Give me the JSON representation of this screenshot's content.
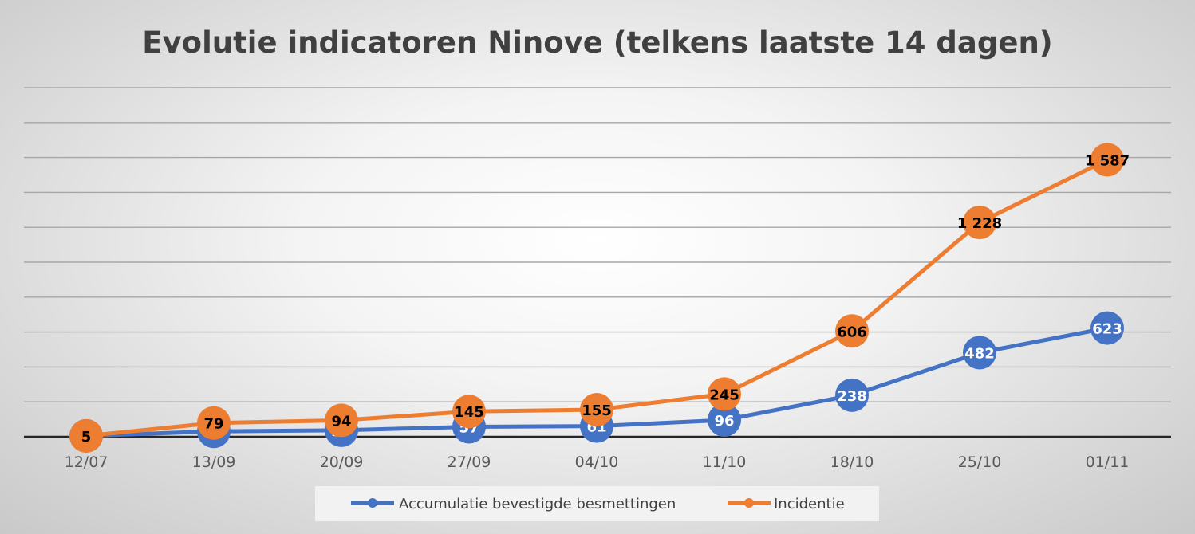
{
  "chart_data": {
    "type": "line",
    "title": "Evolutie indicatoren Ninove (telkens laatste 14 dagen)",
    "xlabel": "",
    "ylabel": "",
    "categories": [
      "12/07",
      "13/09",
      "20/09",
      "27/09",
      "04/10",
      "11/10",
      "18/10",
      "25/10",
      "01/11"
    ],
    "ylim": [
      0,
      2000
    ],
    "y_gridlines": true,
    "y_tick_labels_shown": false,
    "legend_position": "bottom",
    "series": [
      {
        "name": "Accumulatie bevestigde besmettingen",
        "color": "#4472C4",
        "label_color": "#ffffff",
        "values": [
          5,
          31,
          37,
          57,
          61,
          96,
          238,
          482,
          623
        ],
        "labels": [
          "5",
          "31",
          "37",
          "57",
          "61",
          "96",
          "238",
          "482",
          "623"
        ]
      },
      {
        "name": "Incidentie",
        "color": "#ED7D31",
        "label_color": "#000000",
        "values": [
          5,
          79,
          94,
          145,
          155,
          245,
          606,
          1228,
          1587
        ],
        "labels": [
          "5",
          "79",
          "94",
          "145",
          "155",
          "245",
          "606",
          "1 228",
          "1 587"
        ]
      }
    ]
  }
}
